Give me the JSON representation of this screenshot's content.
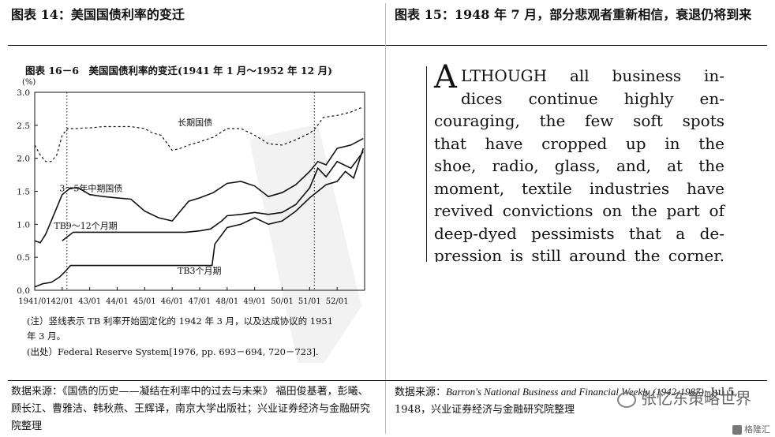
{
  "left_panel": {
    "title": "图表 14：美国国债利率的变迁",
    "source_text": "数据来源：《国债的历史——凝结在利率中的过去与未来》 福田俊基著，彭曦、顾长江、曹雅洁、韩秋燕、王辉译，南京大学出版社；兴业证券经济与金融研究院整理"
  },
  "right_panel": {
    "title": "图表 15：1948 年 7 月，部分悲观者重新相信，衰退仍将到来",
    "clipping_lines": [
      "LTHOUGH all business in-",
      "dices continue highly en-",
      "couraging, the few soft spots",
      "that have cropped up in the",
      "shoe, radio, glass, and, at the",
      "moment, textile industries have",
      "revived convictions on the part of",
      "deep-dyed pessimists that a de-",
      "pression is still around the corner."
    ],
    "clipping_dropcap": "A",
    "source_prefix": "数据来源：",
    "source_italic": "Barron's National Business and Financial Weekly (1942-1987)",
    "source_rest": "; Jul 5, 1948，兴业证券经济与金融研究院整理"
  },
  "watermark": {
    "main": "张忆东策略世界",
    "small": "格隆汇"
  },
  "chart_data": {
    "type": "line",
    "title": "图表 16－6　美国国债利率的变迁(1941 年 1 月～1952 年 12 月)",
    "ylabel": "(%)",
    "xlabel": "",
    "ylim": [
      0,
      3.0
    ],
    "xlim": [
      1941.0,
      1953.0
    ],
    "yticks": [
      "0.0",
      "0.5",
      "1.0",
      "1.5",
      "2.0",
      "2.5",
      "3.0"
    ],
    "xticks": [
      "1941/01",
      "42/01",
      "43/01",
      "44/01",
      "45/01",
      "46/01",
      "47/01",
      "48/01",
      "49/01",
      "50/01",
      "51/01",
      "52/01"
    ],
    "vlines": [
      1942.17,
      1951.17
    ],
    "note": "(注）竖线表示 TB 利率开始固定化的 1942 年 3 月，以及达成协议的 1951 年 3 月。",
    "source": "(出处）Federal Reserve System[1976, pp. 693－694, 720－723].",
    "series": [
      {
        "name": "长期国债",
        "style": "dashed",
        "x": [
          1941.0,
          1941.2,
          1941.4,
          1941.6,
          1941.8,
          1942.0,
          1942.2,
          1942.5,
          1942.8,
          1943.0,
          1943.5,
          1944.0,
          1944.5,
          1945.0,
          1945.3,
          1945.6,
          1946.0,
          1946.3,
          1946.6,
          1947.0,
          1947.5,
          1948.0,
          1948.5,
          1949.0,
          1949.5,
          1950.0,
          1950.5,
          1951.0,
          1951.2,
          1951.5,
          1952.0,
          1952.5,
          1952.95
        ],
        "y": [
          2.2,
          2.05,
          1.95,
          1.95,
          2.05,
          2.35,
          2.45,
          2.45,
          2.46,
          2.46,
          2.48,
          2.48,
          2.48,
          2.45,
          2.38,
          2.35,
          2.12,
          2.15,
          2.2,
          2.25,
          2.32,
          2.45,
          2.45,
          2.35,
          2.22,
          2.2,
          2.28,
          2.38,
          2.45,
          2.62,
          2.65,
          2.7,
          2.78
        ]
      },
      {
        "name": "3～5年中期国债",
        "style": "solid",
        "x": [
          1941.0,
          1941.2,
          1941.4,
          1941.7,
          1942.0,
          1942.3,
          1942.6,
          1943.0,
          1943.5,
          1944.0,
          1944.5,
          1945.0,
          1945.5,
          1946.0,
          1946.3,
          1946.6,
          1947.0,
          1947.5,
          1948.0,
          1948.5,
          1949.0,
          1949.5,
          1950.0,
          1950.5,
          1951.0,
          1951.3,
          1951.6,
          1952.0,
          1952.5,
          1952.95
        ],
        "y": [
          0.75,
          0.72,
          0.85,
          1.15,
          1.45,
          1.55,
          1.55,
          1.45,
          1.42,
          1.4,
          1.38,
          1.2,
          1.1,
          1.05,
          1.2,
          1.35,
          1.4,
          1.48,
          1.62,
          1.65,
          1.58,
          1.42,
          1.48,
          1.6,
          1.8,
          1.95,
          1.9,
          2.15,
          2.2,
          2.3
        ]
      },
      {
        "name": "TB9～12个月期",
        "style": "solid",
        "x": [
          1942.0,
          1942.4,
          1942.8,
          1943.5,
          1944.5,
          1945.5,
          1946.5,
          1947.0,
          1947.4,
          1947.8,
          1948.0,
          1948.5,
          1949.0,
          1949.5,
          1950.0,
          1950.5,
          1951.0,
          1951.3,
          1951.6,
          1952.0,
          1952.5,
          1952.95
        ],
        "y": [
          0.75,
          0.88,
          0.88,
          0.88,
          0.88,
          0.88,
          0.88,
          0.9,
          0.93,
          1.05,
          1.13,
          1.15,
          1.18,
          1.15,
          1.18,
          1.3,
          1.55,
          1.85,
          1.72,
          1.95,
          1.85,
          2.1
        ]
      },
      {
        "name": "TB3个月期",
        "style": "solid",
        "x": [
          1941.0,
          1941.3,
          1941.6,
          1941.9,
          1942.1,
          1942.3,
          1943.0,
          1944.0,
          1945.0,
          1946.0,
          1947.0,
          1947.45,
          1947.55,
          1948.0,
          1948.5,
          1949.0,
          1949.5,
          1950.0,
          1950.5,
          1951.0,
          1951.3,
          1951.6,
          1952.0,
          1952.3,
          1952.6,
          1952.95
        ],
        "y": [
          0.05,
          0.1,
          0.12,
          0.2,
          0.28,
          0.375,
          0.375,
          0.375,
          0.375,
          0.375,
          0.375,
          0.375,
          0.7,
          0.95,
          1.0,
          1.1,
          1.0,
          1.05,
          1.2,
          1.4,
          1.5,
          1.6,
          1.65,
          1.8,
          1.7,
          2.15
        ]
      }
    ],
    "series_labels": [
      "长期国债",
      "3～5年中期国债",
      "TB9～12个月期",
      "TB3个月期"
    ]
  }
}
